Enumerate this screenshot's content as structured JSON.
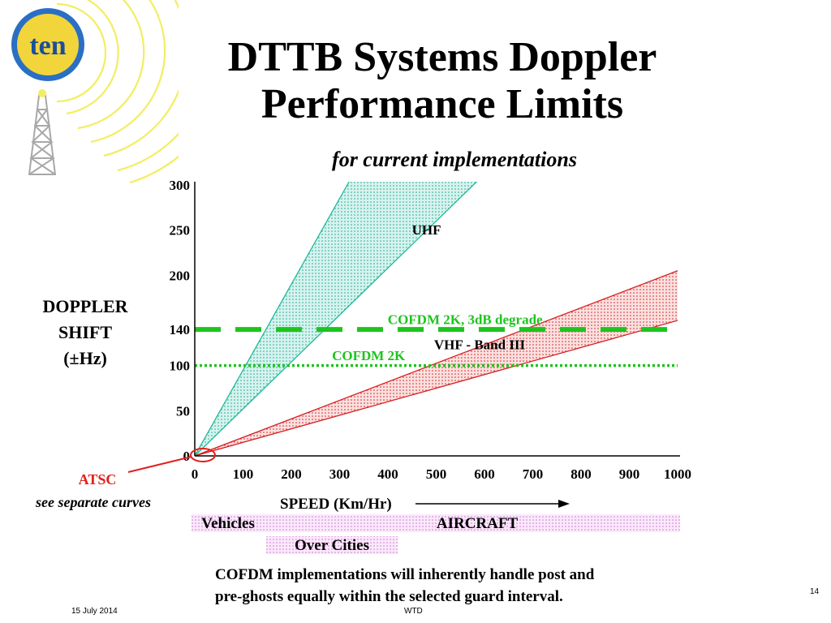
{
  "slide": {
    "title_line1": "DTTB Systems Doppler",
    "title_line2": "Performance Limits",
    "subtitle": "for current implementations",
    "note_line1": "COFDM implementations will inherently handle post and",
    "note_line2": "pre-ghosts equally within the selected guard interval.",
    "footer_date": "15 July 2014",
    "footer_author": "WTD",
    "page_number": "14",
    "logo_text": "ten"
  },
  "chart_data": {
    "type": "area",
    "ylabel_lines": [
      "DOPPLER",
      "SHIFT",
      "(±Hz)"
    ],
    "xlabel": "SPEED (Km/Hr)",
    "x_ticks": [
      0,
      100,
      200,
      300,
      400,
      500,
      600,
      700,
      800,
      900,
      1000
    ],
    "y_ticks": [
      0,
      50,
      100,
      140,
      200,
      250,
      300
    ],
    "xlim": [
      0,
      1000
    ],
    "ylim": [
      0,
      300
    ],
    "bands": [
      {
        "name": "UHF",
        "color": "#20b89a",
        "fill": "#9fe3d6",
        "x": [
          0,
          1000
        ],
        "y_lower": [
          0,
          520
        ],
        "y_upper": [
          0,
          950
        ]
      },
      {
        "name": "VHF - Band III",
        "color": "#d42020",
        "fill": "#f0a0a0",
        "x": [
          0,
          1000
        ],
        "y_lower": [
          0,
          150
        ],
        "y_upper": [
          0,
          205
        ]
      }
    ],
    "thresholds": [
      {
        "name": "COFDM 2K, 3dB degrade",
        "y": 140,
        "style": "dashed",
        "color": "#1ec41e"
      },
      {
        "name": "COFDM 2K",
        "y": 100,
        "style": "dotted",
        "color": "#1ec41e"
      }
    ],
    "speed_categories": [
      {
        "name": "Vehicles",
        "x": [
          0,
          150
        ]
      },
      {
        "name": "AIRCRAFT",
        "x": [
          150,
          1000
        ]
      },
      {
        "name": "Over Cities",
        "x": [
          150,
          450
        ]
      }
    ],
    "atsc_label": "ATSC",
    "atsc_note": "see separate curves",
    "colors": {
      "uhf": "#20b89a",
      "vhf": "#d42020",
      "cofdm": "#1ec41e",
      "atsc": "#e0201a",
      "category_band": "#e8b0ec"
    }
  }
}
